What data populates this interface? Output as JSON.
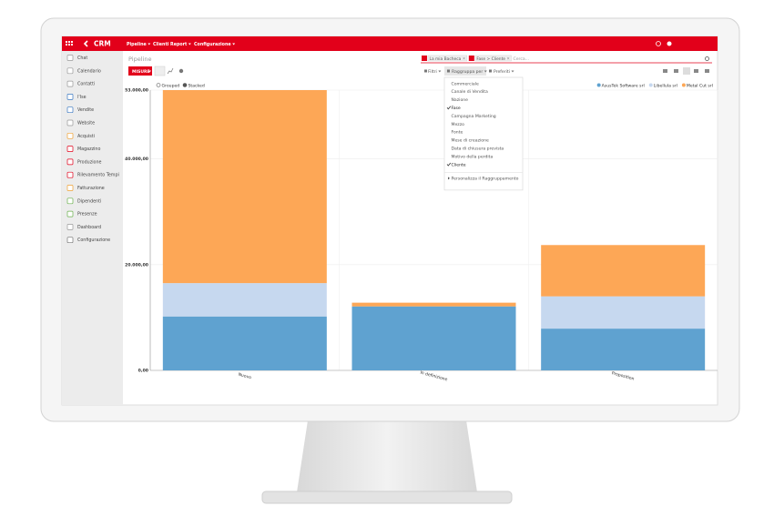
{
  "app": {
    "brand": "CRM",
    "menu": [
      "Pipeline",
      "Clienti",
      "Report",
      "Configurazione"
    ]
  },
  "sidebar": [
    "Chat",
    "Calendario",
    "Contatti",
    "l'Ise",
    "Vendite",
    "Website",
    "Acquisti",
    "Magazzino",
    "Produzione",
    "Rilevamento Tempi",
    "Fatturazione",
    "Dipendenti",
    "Presenze",
    "Dashboard",
    "Configurazione"
  ],
  "breadcrumb": "Pipeline",
  "search": {
    "facets": [
      "La mia Bacheca",
      "Fase > Cliente"
    ],
    "placeholder": "Cerca..."
  },
  "toolbar": {
    "measures": "MISURE",
    "filters": "Filtri",
    "group_by": "Raggruppa per",
    "favorites": "Preferiti"
  },
  "group_menu": {
    "items": [
      {
        "label": "Commerciale",
        "checked": false
      },
      {
        "label": "Canale di Vendita",
        "checked": false
      },
      {
        "label": "Nazione",
        "checked": false
      },
      {
        "label": "Fase",
        "checked": true
      },
      {
        "label": "Campagna Marketing",
        "checked": false
      },
      {
        "label": "Mezzo",
        "checked": false
      },
      {
        "label": "Fonte",
        "checked": false
      },
      {
        "label": "Mese di creazione",
        "checked": false
      },
      {
        "label": "Data di chiusura prevista",
        "checked": false
      },
      {
        "label": "Motivo della perdita",
        "checked": false
      },
      {
        "label": "Cliente",
        "checked": true
      }
    ],
    "custom": "Personalizza il Raggruppamento"
  },
  "chart_data": {
    "type": "bar",
    "stacked": true,
    "modes": [
      "Grouped",
      "Stacked"
    ],
    "active_mode": 1,
    "categories": [
      "Nuovo",
      "In definizione",
      "Proposition"
    ],
    "series": [
      {
        "name": "AsusTek Software srl",
        "color": "#5fa2d0",
        "values": [
          10200,
          12100,
          7900
        ]
      },
      {
        "name": "Libellula srl",
        "color": "#c6d8ef",
        "values": [
          6300,
          0,
          6100
        ]
      },
      {
        "name": "Metal Cut srl",
        "color": "#fda756",
        "values": [
          36500,
          700,
          9700
        ]
      }
    ],
    "ylim": [
      0,
      53000
    ],
    "yticks": [
      {
        "value": 0,
        "label": "0,00"
      },
      {
        "value": 20000,
        "label": "20.000,00"
      },
      {
        "value": 40000,
        "label": "40.000,00"
      },
      {
        "value": 53000,
        "label": "53.000,00"
      }
    ],
    "grid": true,
    "legend": "top-right"
  }
}
